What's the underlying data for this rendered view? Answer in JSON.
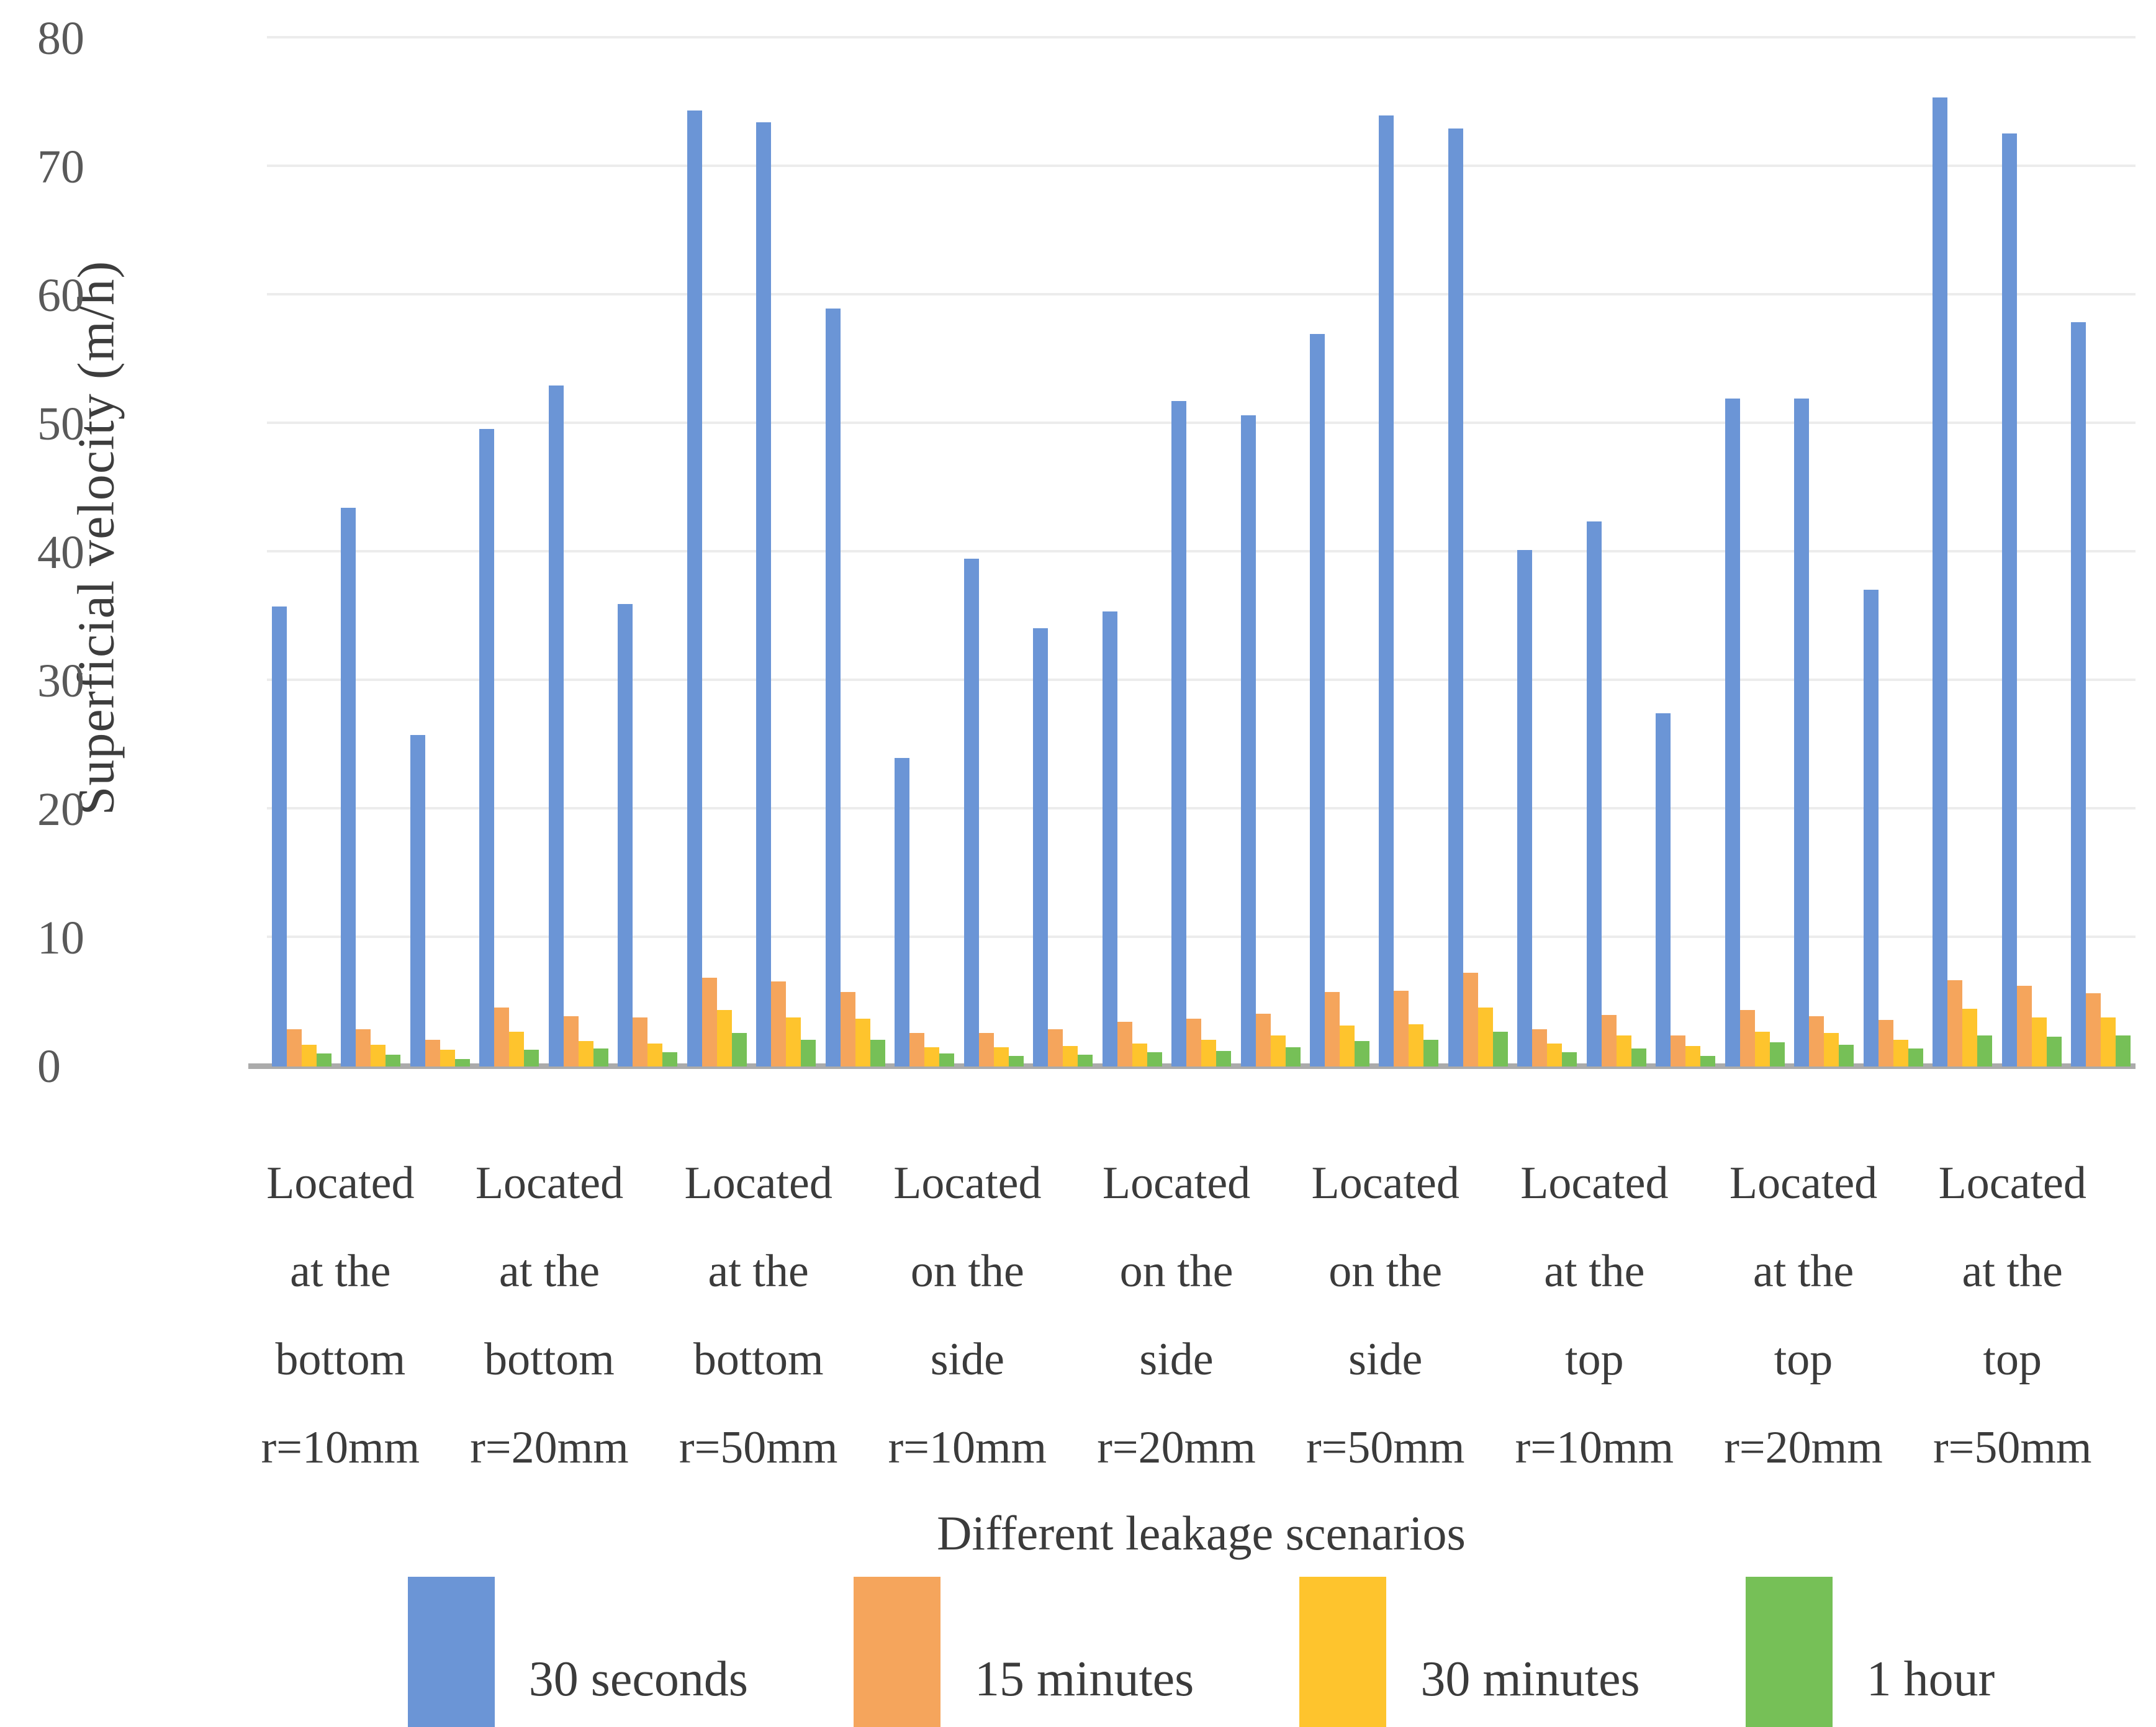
{
  "chart_data": {
    "type": "bar",
    "title": "",
    "xlabel": "Different leakage scenarios",
    "ylabel": "Superficial velocity (m/h)",
    "ylim": [
      0,
      80
    ],
    "ytick_step": 10,
    "yticks": [
      0,
      10,
      20,
      30,
      40,
      50,
      60,
      70,
      80
    ],
    "grid": "horizontal",
    "legend_position": "bottom",
    "legend_title": "Different leakage scenarios",
    "categories": [
      {
        "lines": [
          "Located",
          "at the",
          "bottom",
          "r=10mm"
        ],
        "label": "Located at the bottom r=10mm"
      },
      {
        "lines": [
          "Located",
          "at the",
          "bottom",
          "r=20mm"
        ],
        "label": "Located at the bottom r=20mm"
      },
      {
        "lines": [
          "Located",
          "at the",
          "bottom",
          "r=50mm"
        ],
        "label": "Located at the bottom r=50mm"
      },
      {
        "lines": [
          "Located",
          "on the",
          "side",
          "r=10mm"
        ],
        "label": "Located on the side r=10mm"
      },
      {
        "lines": [
          "Located",
          "on the",
          "side",
          "r=20mm"
        ],
        "label": "Located on the side r=20mm"
      },
      {
        "lines": [
          "Located",
          "on the",
          "side",
          "r=50mm"
        ],
        "label": "Located on the side r=50mm"
      },
      {
        "lines": [
          "Located",
          "at the",
          "top",
          "r=10mm"
        ],
        "label": "Located at the top r=10mm"
      },
      {
        "lines": [
          "Located",
          "at the",
          "top",
          "r=20mm"
        ],
        "label": "Located at the top r=20mm"
      },
      {
        "lines": [
          "Located",
          "at the",
          "top",
          "r=50mm"
        ],
        "label": "Located at the top r=50mm"
      }
    ],
    "clusters_per_category": 3,
    "series": [
      {
        "name": "30 seconds",
        "color": "#6b95d6",
        "values": [
          35.8,
          43.5,
          25.8,
          49.6,
          53.0,
          36.0,
          74.4,
          73.5,
          59.0,
          24.0,
          39.5,
          34.1,
          35.4,
          51.8,
          50.7,
          57.0,
          74.0,
          73.0,
          40.2,
          42.4,
          27.5,
          52.0,
          52.0,
          37.1,
          75.4,
          72.6,
          57.9
        ]
      },
      {
        "name": "15 minutes",
        "color": "#f5a55c",
        "values": [
          2.9,
          2.9,
          2.1,
          4.6,
          3.9,
          3.8,
          6.9,
          6.6,
          5.8,
          2.6,
          2.6,
          2.9,
          3.5,
          3.7,
          4.1,
          5.8,
          5.9,
          7.3,
          2.9,
          4.0,
          2.4,
          4.4,
          3.9,
          3.6,
          6.7,
          6.3,
          5.7
        ]
      },
      {
        "name": "30 minutes",
        "color": "#fec42d",
        "values": [
          1.7,
          1.7,
          1.3,
          2.7,
          2.0,
          1.8,
          4.4,
          3.8,
          3.7,
          1.5,
          1.5,
          1.6,
          1.8,
          2.1,
          2.4,
          3.2,
          3.3,
          4.6,
          1.8,
          2.4,
          1.6,
          2.7,
          2.6,
          2.1,
          4.5,
          3.8,
          3.8
        ]
      },
      {
        "name": "1 hour",
        "color": "#76c057",
        "values": [
          1.0,
          0.9,
          0.6,
          1.3,
          1.4,
          1.1,
          2.6,
          2.1,
          2.1,
          1.0,
          0.8,
          0.9,
          1.1,
          1.2,
          1.5,
          2.0,
          2.1,
          2.7,
          1.1,
          1.4,
          0.8,
          1.9,
          1.7,
          1.4,
          2.4,
          2.3,
          2.4
        ]
      }
    ]
  },
  "axes": {
    "y_title": "Superficial velocity (m/h)"
  },
  "legend": {
    "title": "Different leakage scenarios",
    "items": [
      "30 seconds",
      "15 minutes",
      "30 minutes",
      "1 hour"
    ]
  },
  "colors": {
    "series_blue": "#6b95d6",
    "series_orange": "#f5a55c",
    "series_yellow": "#fec42d",
    "series_green": "#76c057",
    "gridline": "#ececec",
    "axis_line": "#ababab",
    "tick_text": "#595959",
    "label_text": "#3b3b3b"
  }
}
